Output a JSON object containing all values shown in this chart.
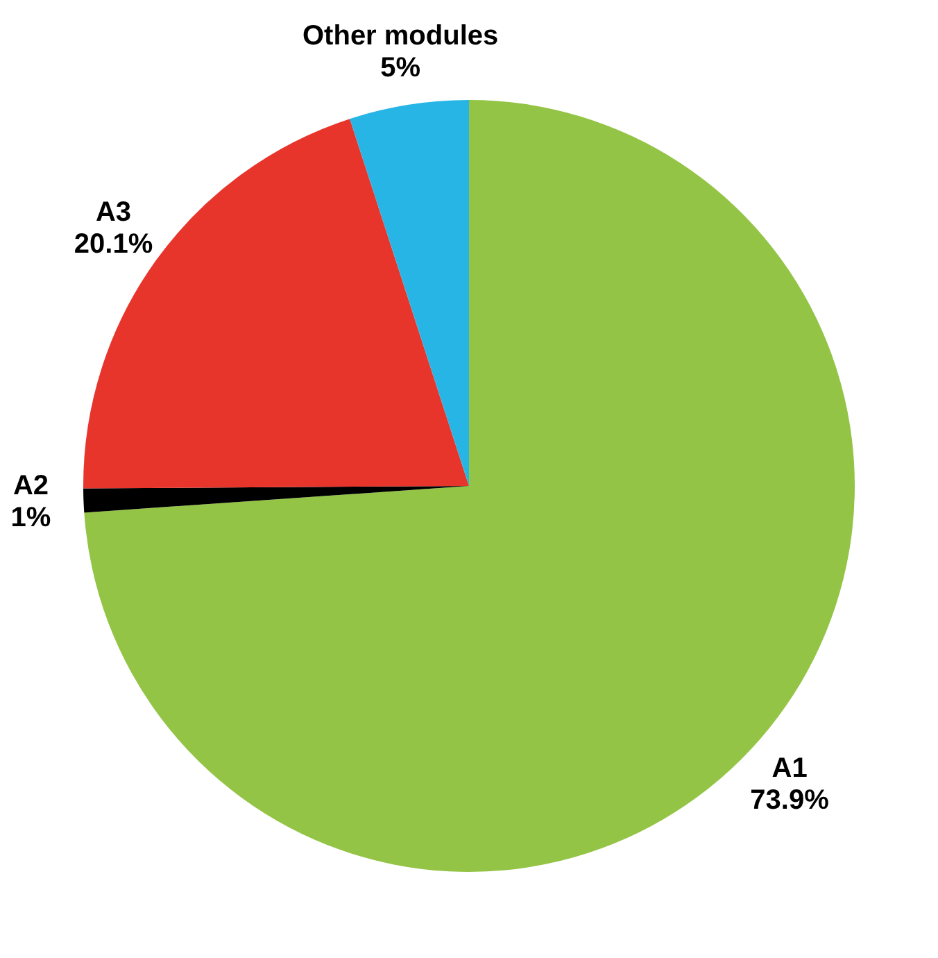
{
  "chart_data": {
    "type": "pie",
    "categories": [
      "A1",
      "A2",
      "A3",
      "Other modules"
    ],
    "values": [
      73.9,
      1,
      20.1,
      5
    ],
    "value_labels": [
      "73.9%",
      "1%",
      "20.1%",
      "5%"
    ],
    "colors": [
      "#94c446",
      "#000000",
      "#e8352c",
      "#27b5e6"
    ],
    "legend": false
  }
}
